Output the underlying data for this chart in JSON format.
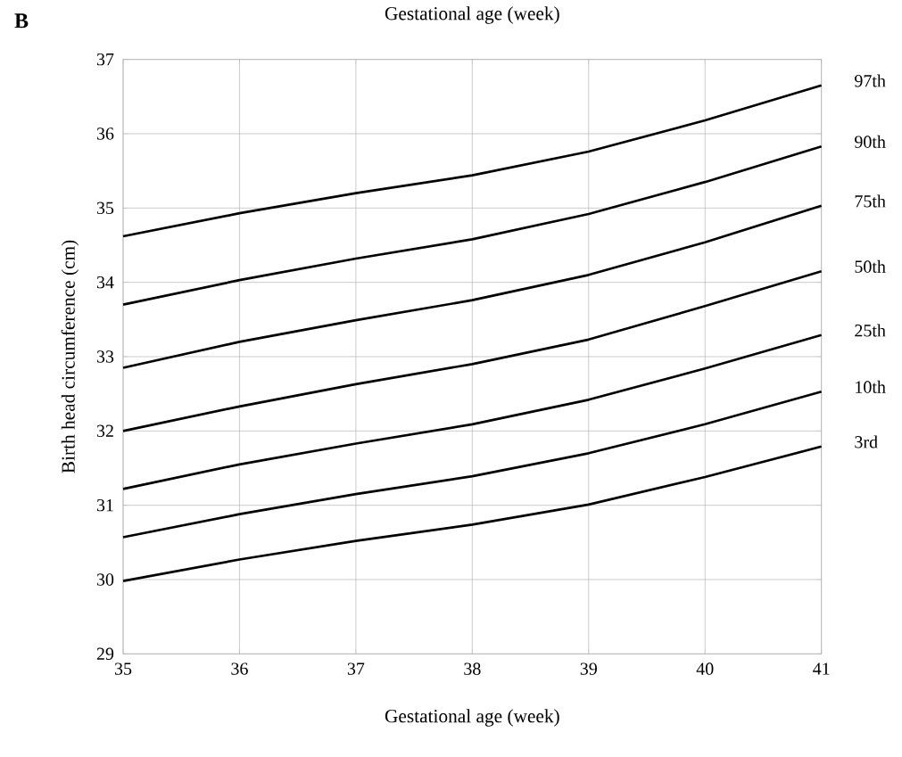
{
  "chart_data": {
    "type": "line",
    "xlabel": "Gestational age (week)",
    "ylabel": "Birth head circumference (cm)",
    "annotations": [
      "B",
      "Gestational age (week)"
    ],
    "x": [
      35,
      36,
      37,
      38,
      39,
      40,
      41
    ],
    "xlim": [
      35,
      41
    ],
    "xticks": [
      35,
      36,
      37,
      38,
      39,
      40,
      41
    ],
    "ylim": [
      29,
      37
    ],
    "yticks": [
      29,
      30,
      31,
      32,
      33,
      34,
      35,
      36,
      37
    ],
    "grid": true,
    "marker": "none",
    "line_style": "solid",
    "series": [
      {
        "name": "97th",
        "color": "#000000",
        "values": [
          34.62,
          34.93,
          35.2,
          35.44,
          35.76,
          36.18,
          36.65
        ]
      },
      {
        "name": "90th",
        "color": "#000000",
        "values": [
          33.7,
          34.03,
          34.32,
          34.58,
          34.92,
          35.35,
          35.83
        ]
      },
      {
        "name": "75th",
        "color": "#000000",
        "values": [
          32.85,
          33.2,
          33.49,
          33.76,
          34.1,
          34.54,
          35.03
        ]
      },
      {
        "name": "50th",
        "color": "#000000",
        "values": [
          32.0,
          32.33,
          32.63,
          32.9,
          33.23,
          33.68,
          34.15
        ]
      },
      {
        "name": "25th",
        "color": "#000000",
        "values": [
          31.22,
          31.55,
          31.83,
          32.09,
          32.42,
          32.84,
          33.29
        ]
      },
      {
        "name": "10th",
        "color": "#000000",
        "values": [
          30.57,
          30.88,
          31.15,
          31.39,
          31.7,
          32.09,
          32.53
        ]
      },
      {
        "name": "3rd",
        "color": "#000000",
        "values": [
          29.98,
          30.27,
          30.52,
          30.74,
          31.01,
          31.38,
          31.79
        ]
      }
    ]
  }
}
